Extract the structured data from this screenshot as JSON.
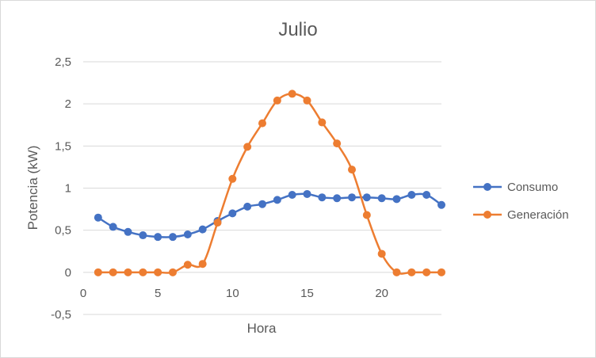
{
  "chart_data": {
    "type": "line",
    "title": "Julio",
    "xlabel": "Hora",
    "ylabel": "Potencia (kW)",
    "xlim": [
      0,
      24
    ],
    "ylim": [
      -0.5,
      2.5
    ],
    "x_ticks": [
      "0",
      "5",
      "10",
      "15",
      "20"
    ],
    "y_ticks": [
      "2,5",
      "2",
      "1,5",
      "1",
      "0,5",
      "0",
      "-0,5"
    ],
    "grid": "horizontal",
    "legend_position": "right",
    "x": [
      1,
      2,
      3,
      4,
      5,
      6,
      7,
      8,
      9,
      10,
      11,
      12,
      13,
      14,
      15,
      16,
      17,
      18,
      19,
      20,
      21,
      22,
      23,
      24
    ],
    "series": [
      {
        "name": "Consumo",
        "color": "#4472c4",
        "values": [
          0.65,
          0.54,
          0.48,
          0.44,
          0.42,
          0.42,
          0.45,
          0.51,
          0.61,
          0.7,
          0.78,
          0.81,
          0.86,
          0.92,
          0.93,
          0.89,
          0.88,
          0.89,
          0.89,
          0.88,
          0.87,
          0.92,
          0.92,
          0.8
        ]
      },
      {
        "name": "Generación",
        "color": "#ed7d31",
        "values": [
          0,
          0,
          0,
          0,
          0,
          0,
          0.09,
          0.1,
          0.59,
          1.11,
          1.49,
          1.77,
          2.04,
          2.12,
          2.04,
          1.78,
          1.53,
          1.22,
          0.68,
          0.22,
          0,
          0,
          0,
          0
        ]
      }
    ]
  }
}
